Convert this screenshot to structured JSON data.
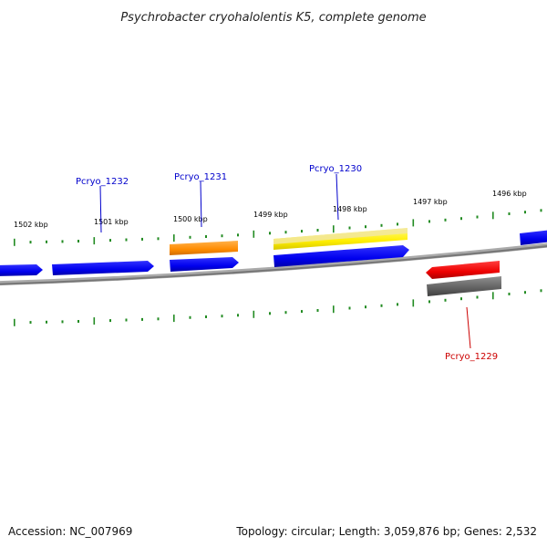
{
  "title": "Psychrobacter cryohalolentis K5, complete genome",
  "footer": {
    "accession": "Accession: NC_007969",
    "summary": "Topology: circular; Length: 3,059,876 bp; Genes: 2,532"
  },
  "scale_labels": [
    "1502 kbp",
    "1501 kbp",
    "1500 kbp",
    "1499 kbp",
    "1498 kbp",
    "1497 kbp",
    "1496 kbp"
  ],
  "gene_labels": [
    {
      "id": "Pcryo_1232",
      "color": "#0000cc"
    },
    {
      "id": "Pcryo_1231",
      "color": "#0000cc"
    },
    {
      "id": "Pcryo_1230",
      "color": "#0000cc"
    },
    {
      "id": "Pcryo_1229",
      "color": "#cc0000"
    }
  ],
  "colors": {
    "forward_gene": "#0000ff",
    "reverse_gene": "#ff0000",
    "orange_feature": "#ff8c00",
    "yellow_feature": "#ffee00",
    "gray_feature": "#606060",
    "ticks": "#228b22",
    "backbone": "#888888"
  }
}
